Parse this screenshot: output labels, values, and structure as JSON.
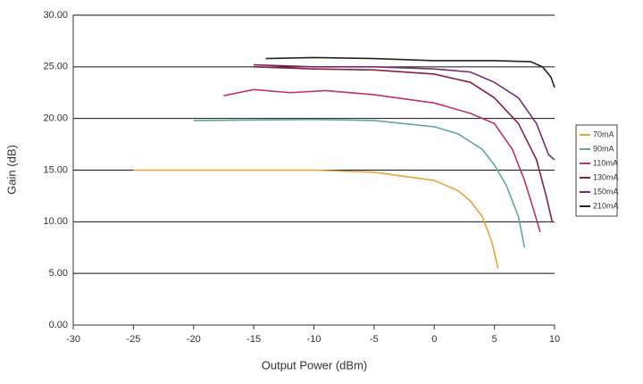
{
  "chart_data": {
    "type": "line",
    "x_label": "Output Power (dBm)",
    "y_label": "Gain (dB)",
    "xlim": [
      -30,
      10
    ],
    "xticks": [
      -30,
      -25,
      -20,
      -15,
      -10,
      -5,
      0,
      5,
      10
    ],
    "ylim": [
      0,
      30
    ],
    "yticks": [
      {
        "value": 0,
        "label": "0.00"
      },
      {
        "value": 5,
        "label": "5.00"
      },
      {
        "value": 10,
        "label": "10.00"
      },
      {
        "value": 15,
        "label": "15.00"
      },
      {
        "value": 20,
        "label": "20.00"
      },
      {
        "value": 25,
        "label": "25.00"
      },
      {
        "value": 30,
        "label": "30.00"
      }
    ],
    "grid": true,
    "legend": "right",
    "series": [
      {
        "name": "70mA",
        "color": "#e8a33c",
        "x": [
          -25,
          -10,
          -5,
          0,
          2,
          3,
          4,
          4.8,
          5.3
        ],
        "values": [
          15,
          15,
          14.8,
          14,
          13,
          12,
          10.5,
          8,
          5.5
        ]
      },
      {
        "name": "90mA",
        "color": "#5fa8a0",
        "x": [
          -20,
          -10,
          -5,
          0,
          2,
          4,
          5,
          6,
          7,
          7.5
        ],
        "values": [
          19.8,
          19.9,
          19.8,
          19.2,
          18.5,
          17,
          15.5,
          13.5,
          10.5,
          7.5
        ]
      },
      {
        "name": "110mA",
        "color": "#c0306a",
        "x": [
          -17.5,
          -15,
          -12,
          -9,
          -5,
          0,
          3,
          5,
          6.5,
          7.5,
          8.3,
          8.8
        ],
        "values": [
          22.2,
          22.8,
          22.5,
          22.7,
          22.3,
          21.5,
          20.5,
          19.5,
          17,
          14,
          11,
          9
        ]
      },
      {
        "name": "130mA",
        "color": "#8a1f3c",
        "x": [
          -15,
          -10,
          -5,
          0,
          3,
          5,
          7,
          8.5,
          9.3,
          9.8
        ],
        "values": [
          25,
          24.8,
          24.7,
          24.3,
          23.5,
          22,
          19.5,
          16,
          12.5,
          10
        ]
      },
      {
        "name": "150mA",
        "color": "#7a2a6e",
        "x": [
          -15,
          -10,
          -5,
          0,
          3,
          5,
          7,
          8.5,
          9.5,
          10
        ],
        "values": [
          25.2,
          25,
          25,
          24.8,
          24.5,
          23.5,
          22,
          19.5,
          16.5,
          16
        ]
      },
      {
        "name": "210mA",
        "color": "#222222",
        "x": [
          -14,
          -10,
          -5,
          0,
          5,
          8,
          9,
          9.7,
          10
        ],
        "values": [
          25.8,
          25.9,
          25.8,
          25.6,
          25.6,
          25.5,
          25,
          24,
          23
        ]
      }
    ]
  }
}
